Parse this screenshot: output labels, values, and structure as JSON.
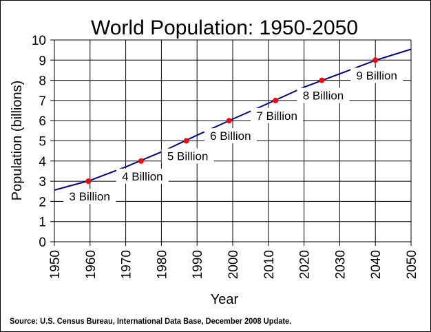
{
  "chart_data": {
    "type": "line",
    "title": "World Population: 1950-2050",
    "xlabel": "Year",
    "ylabel": "Population (billions)",
    "xlim": [
      1950,
      2050
    ],
    "ylim": [
      0,
      10
    ],
    "x_ticks": [
      "1950",
      "1960",
      "1970",
      "1980",
      "1990",
      "2000",
      "2010",
      "2020",
      "2030",
      "2040",
      "2050"
    ],
    "y_ticks": [
      "0",
      "1",
      "2",
      "3",
      "4",
      "5",
      "6",
      "7",
      "8",
      "9",
      "10"
    ],
    "grid": true,
    "series": [
      {
        "x": [
          1950,
          1960,
          1970,
          1980,
          1990,
          2000,
          2010,
          2020,
          2030,
          2040,
          2050
        ],
        "y": [
          2.56,
          3.04,
          3.71,
          4.45,
          5.28,
          6.08,
          6.86,
          7.66,
          8.32,
          8.99,
          9.54
        ],
        "color": "#000080"
      }
    ],
    "milestones": [
      {
        "x": 1959.5,
        "y": 3,
        "label": "3 Billion"
      },
      {
        "x": 1974.3,
        "y": 4,
        "label": "4 Billion"
      },
      {
        "x": 1987,
        "y": 5,
        "label": "5 Billion"
      },
      {
        "x": 1999,
        "y": 6,
        "label": "6 Billion"
      },
      {
        "x": 2012,
        "y": 7,
        "label": "7 Billion"
      },
      {
        "x": 2025,
        "y": 8,
        "label": "8 Billion"
      },
      {
        "x": 2040,
        "y": 9,
        "label": "9 Billion"
      }
    ],
    "milestone_color": "#ff0000"
  },
  "source": "Source: U.S. Census Bureau, International Data Base, December 2008 Update."
}
